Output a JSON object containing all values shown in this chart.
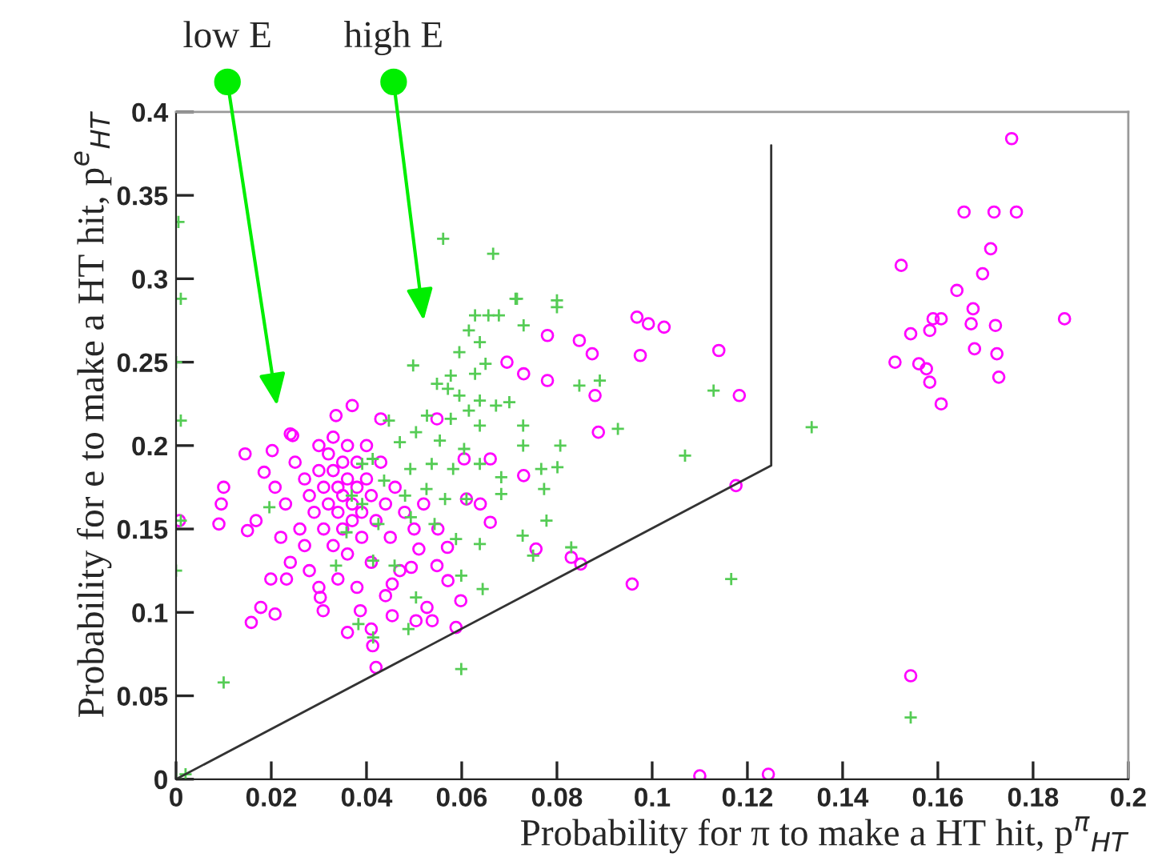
{
  "chart_data": {
    "type": "scatter",
    "xlabel": "Probability for π to make a HT hit, p$^{π}$$_{HT}$",
    "ylabel": "Probability for e to make a HT hit, p$^{e}$$_{HT}$",
    "annotations": [
      "low E",
      "high E"
    ],
    "xlim": [
      0,
      0.2
    ],
    "ylim": [
      0,
      0.4
    ],
    "xticks": [
      0,
      0.02,
      0.04,
      0.06,
      0.08,
      {
        "value": 0.1,
        "label": "0.1"
      },
      0.12,
      0.14,
      0.16,
      0.18,
      {
        "value": 0.2,
        "label": "0.2"
      }
    ],
    "yticks": [
      0,
      0.05,
      {
        "value": 0.1,
        "label": "0.1"
      },
      0.15,
      {
        "value": 0.2,
        "label": "0.2"
      },
      0.25,
      {
        "value": 0.3,
        "label": "0.3"
      },
      0.35,
      {
        "value": 0.4,
        "label": "0.4"
      }
    ],
    "grid": false,
    "legend": false,
    "series": [
      {
        "type": "line",
        "color": "#333333",
        "marker": "none",
        "line_style": "solid",
        "x": [
          0,
          0.125,
          0.125
        ],
        "values": [
          0,
          0.188,
          0.38
        ]
      },
      {
        "color": "#ff00ff",
        "marker": "circle",
        "x": [
          0.0007,
          0.009,
          0.0095,
          0.01,
          0.0145,
          0.015,
          0.0168,
          0.0199,
          0.0232,
          0.0178,
          0.0158,
          0.0208,
          0.0245,
          0.0202,
          0.0185,
          0.0208,
          0.0303,
          0.0309,
          0.036,
          0.0387,
          0.0413,
          0.042,
          0.041,
          0.0454,
          0.0504,
          0.0538,
          0.0527,
          0.0588,
          0.0598,
          0.0571,
          0.0548,
          0.0494,
          0.0454,
          0.051,
          0.057,
          0.0639,
          0.066,
          0.061,
          0.0605,
          0.066,
          0.073,
          0.0756,
          0.083,
          0.078,
          0.0695,
          0.073,
          0.078,
          0.0548,
          0.024,
          0.0336,
          0.037,
          0.043,
          0.0968,
          0.0992,
          0.1025,
          0.0847,
          0.0874,
          0.0975,
          0.114,
          0.1183,
          0.088,
          0.0887,
          0.1176,
          0.085,
          0.0958,
          0.11,
          0.1244,
          0.1755,
          0.1655,
          0.1718,
          0.1765,
          0.1711,
          0.1523,
          0.1694,
          0.164,
          0.1674,
          0.167,
          0.159,
          0.1607,
          0.1583,
          0.1543,
          0.1721,
          0.1866,
          0.1677,
          0.1724,
          0.151,
          0.156,
          0.1576,
          0.1583,
          0.1728,
          0.1607,
          0.1543,
          0.025,
          0.027,
          0.028,
          0.029,
          0.03,
          0.03,
          0.031,
          0.031,
          0.032,
          0.032,
          0.033,
          0.033,
          0.033,
          0.034,
          0.034,
          0.035,
          0.035,
          0.035,
          0.036,
          0.036,
          0.036,
          0.037,
          0.037,
          0.038,
          0.038,
          0.039,
          0.039,
          0.04,
          0.04,
          0.041,
          0.041,
          0.042,
          0.043,
          0.044,
          0.045,
          0.046,
          0.047,
          0.048,
          0.026,
          0.027,
          0.028,
          0.023,
          0.022,
          0.024,
          0.03,
          0.034,
          0.038,
          0.044,
          0.05,
          0.052,
          0.055
        ],
        "values": [
          0.155,
          0.153,
          0.165,
          0.175,
          0.195,
          0.149,
          0.155,
          0.12,
          0.12,
          0.103,
          0.094,
          0.099,
          0.206,
          0.197,
          0.184,
          0.175,
          0.109,
          0.101,
          0.088,
          0.101,
          0.08,
          0.067,
          0.09,
          0.098,
          0.095,
          0.095,
          0.103,
          0.091,
          0.107,
          0.119,
          0.128,
          0.127,
          0.117,
          0.138,
          0.139,
          0.165,
          0.154,
          0.168,
          0.192,
          0.192,
          0.182,
          0.138,
          0.133,
          0.266,
          0.25,
          0.243,
          0.239,
          0.216,
          0.207,
          0.218,
          0.224,
          0.216,
          0.277,
          0.273,
          0.271,
          0.263,
          0.255,
          0.254,
          0.257,
          0.23,
          0.23,
          0.208,
          0.176,
          0.129,
          0.117,
          0.002,
          0.003,
          0.384,
          0.34,
          0.34,
          0.34,
          0.318,
          0.308,
          0.303,
          0.293,
          0.282,
          0.273,
          0.276,
          0.276,
          0.269,
          0.267,
          0.272,
          0.276,
          0.258,
          0.255,
          0.25,
          0.249,
          0.246,
          0.238,
          0.241,
          0.225,
          0.062,
          0.19,
          0.18,
          0.17,
          0.16,
          0.2,
          0.185,
          0.175,
          0.15,
          0.195,
          0.165,
          0.205,
          0.185,
          0.14,
          0.175,
          0.16,
          0.19,
          0.17,
          0.15,
          0.2,
          0.18,
          0.135,
          0.165,
          0.155,
          0.19,
          0.175,
          0.16,
          0.145,
          0.2,
          0.18,
          0.17,
          0.13,
          0.155,
          0.19,
          0.165,
          0.145,
          0.175,
          0.125,
          0.16,
          0.15,
          0.14,
          0.125,
          0.165,
          0.145,
          0.13,
          0.115,
          0.12,
          0.115,
          0.11,
          0.15,
          0.165,
          0.15
        ]
      },
      {
        "color": "#55cc55",
        "marker": "cross",
        "x": [
          0.0005,
          0.001,
          0.0,
          0.001,
          0.001,
          0.0,
          0.002,
          0.0,
          0.0713,
          0.08,
          0.073,
          0.0628,
          0.0656,
          0.0678,
          0.0615,
          0.0638,
          0.0595,
          0.065,
          0.0628,
          0.0548,
          0.0577,
          0.0498,
          0.0595,
          0.0638,
          0.0672,
          0.07,
          0.0615,
          0.0527,
          0.0577,
          0.0638,
          0.0729,
          0.0504,
          0.0554,
          0.0605,
          0.0447,
          0.047,
          0.0413,
          0.0391,
          0.0437,
          0.0492,
          0.0537,
          0.0582,
          0.0638,
          0.0683,
          0.0767,
          0.0807,
          0.0801,
          0.0729,
          0.0773,
          0.0481,
          0.0526,
          0.0565,
          0.061,
          0.0683,
          0.0391,
          0.0425,
          0.0493,
          0.0543,
          0.0588,
          0.0638,
          0.0728,
          0.0778,
          0.075,
          0.083,
          0.0358,
          0.0336,
          0.0459,
          0.0414,
          0.0504,
          0.0599,
          0.0644,
          0.0488,
          0.0383,
          0.0414,
          0.0599,
          0.01,
          0.0196,
          0.0369,
          0.0571,
          0.0561,
          0.0666,
          0.0716,
          0.08,
          0.089,
          0.0928,
          0.1069,
          0.1129,
          0.1166,
          0.0847,
          0.1335,
          0.1543
        ],
        "values": [
          0.334,
          0.288,
          0.25,
          0.215,
          0.155,
          0.125,
          0.003,
          0.0,
          0.288,
          0.283,
          0.272,
          0.278,
          0.278,
          0.278,
          0.269,
          0.262,
          0.256,
          0.249,
          0.243,
          0.237,
          0.242,
          0.248,
          0.23,
          0.227,
          0.224,
          0.226,
          0.221,
          0.218,
          0.216,
          0.212,
          0.212,
          0.208,
          0.203,
          0.198,
          0.215,
          0.202,
          0.192,
          0.189,
          0.179,
          0.186,
          0.189,
          0.186,
          0.189,
          0.181,
          0.186,
          0.2,
          0.187,
          0.2,
          0.174,
          0.17,
          0.174,
          0.168,
          0.168,
          0.171,
          0.165,
          0.153,
          0.157,
          0.153,
          0.144,
          0.141,
          0.146,
          0.155,
          0.134,
          0.139,
          0.148,
          0.128,
          0.128,
          0.131,
          0.109,
          0.122,
          0.114,
          0.09,
          0.093,
          0.085,
          0.066,
          0.058,
          0.163,
          0.17,
          0.234,
          0.324,
          0.315,
          0.288,
          0.287,
          0.239,
          0.21,
          0.194,
          0.233,
          0.12,
          0.236,
          0.211,
          0.037
        ]
      }
    ]
  }
}
